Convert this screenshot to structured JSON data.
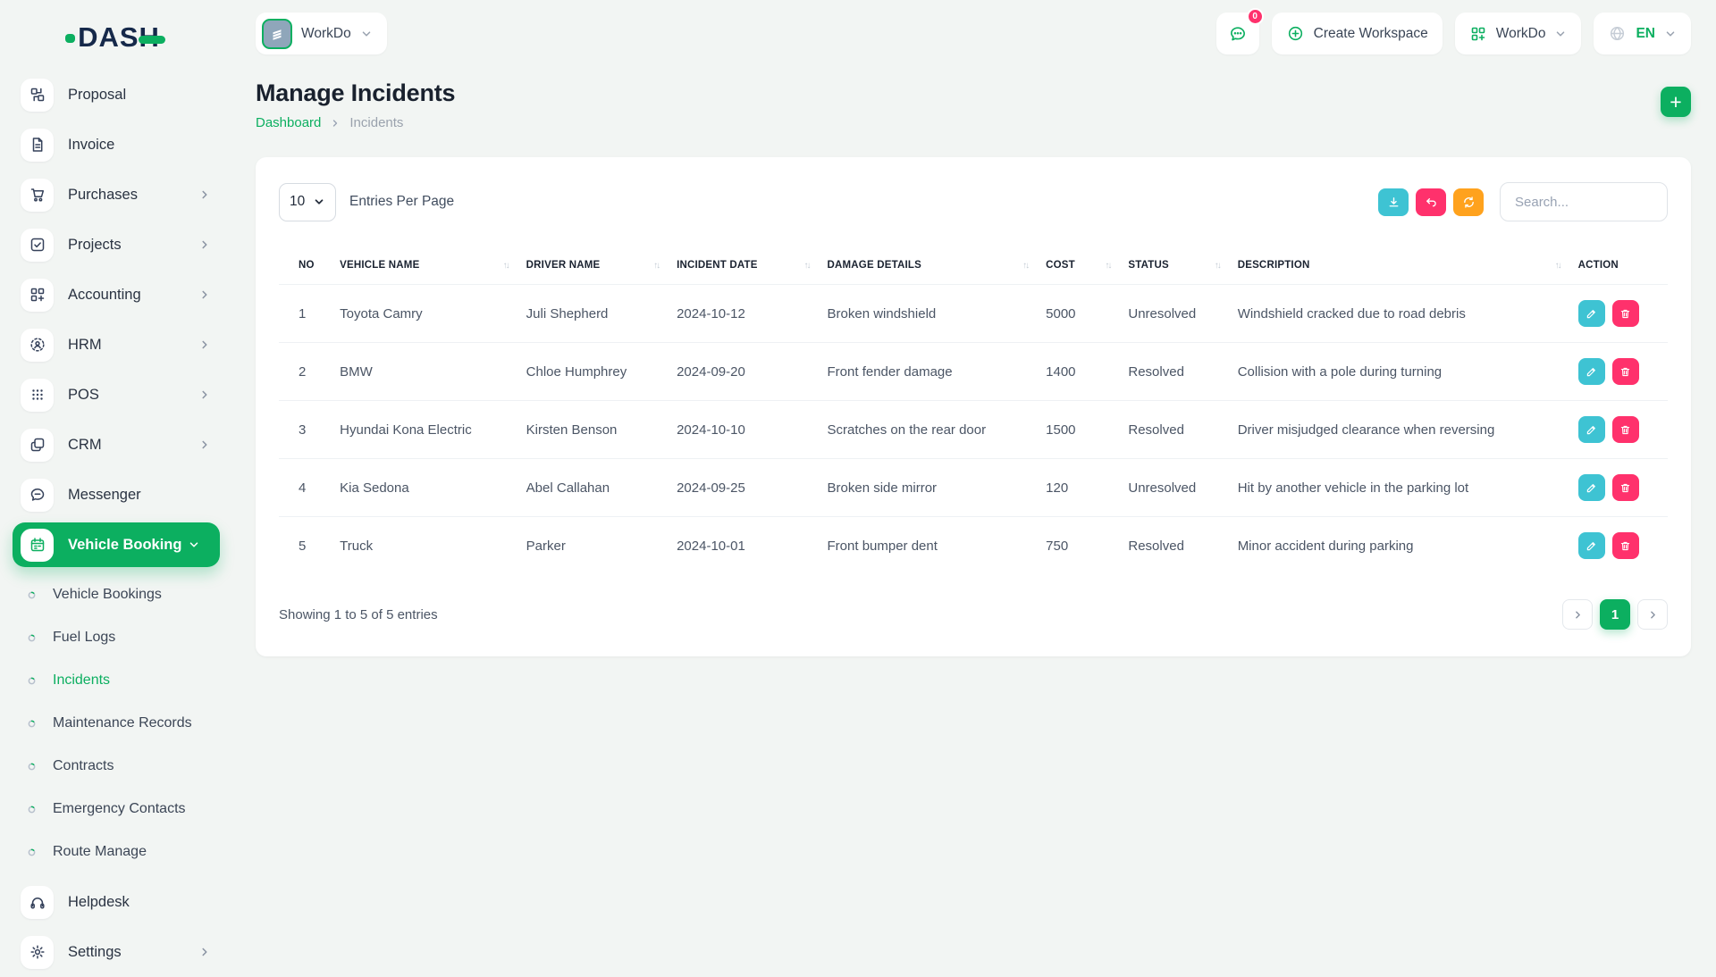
{
  "app": {
    "logo": "DASH"
  },
  "topbar": {
    "workspace_switcher": {
      "label": "WorkDo"
    },
    "messages": {
      "badge": "0"
    },
    "create_workspace": {
      "label": "Create Workspace"
    },
    "user_menu": {
      "label": "WorkDo"
    },
    "language": {
      "label": "EN"
    }
  },
  "sidebar": {
    "items": [
      {
        "label": "Proposal",
        "icon": "proposal-icon",
        "expandable": false
      },
      {
        "label": "Invoice",
        "icon": "invoice-icon",
        "expandable": false
      },
      {
        "label": "Purchases",
        "icon": "purchases-icon",
        "expandable": true
      },
      {
        "label": "Projects",
        "icon": "projects-icon",
        "expandable": true
      },
      {
        "label": "Accounting",
        "icon": "accounting-icon",
        "expandable": true
      },
      {
        "label": "HRM",
        "icon": "hrm-icon",
        "expandable": true
      },
      {
        "label": "POS",
        "icon": "pos-icon",
        "expandable": true
      },
      {
        "label": "CRM",
        "icon": "crm-icon",
        "expandable": true
      },
      {
        "label": "Messenger",
        "icon": "messenger-icon",
        "expandable": false
      },
      {
        "label": "Vehicle Booking",
        "icon": "vehicle-booking-icon",
        "expandable": true,
        "expanded": true,
        "active": true,
        "children": [
          {
            "label": "Vehicle Bookings",
            "active": false
          },
          {
            "label": "Fuel Logs",
            "active": false
          },
          {
            "label": "Incidents",
            "active": true
          },
          {
            "label": "Maintenance Records",
            "active": false
          },
          {
            "label": "Contracts",
            "active": false
          },
          {
            "label": "Emergency Contacts",
            "active": false
          },
          {
            "label": "Route Manage",
            "active": false
          }
        ]
      },
      {
        "label": "Helpdesk",
        "icon": "helpdesk-icon",
        "expandable": false
      },
      {
        "label": "Settings",
        "icon": "settings-icon",
        "expandable": true
      }
    ]
  },
  "page": {
    "title": "Manage Incidents",
    "breadcrumb": {
      "home": "Dashboard",
      "current": "Incidents"
    },
    "add_button": "+"
  },
  "table_card": {
    "entries_per_page": {
      "value": "10",
      "label": "Entries Per Page"
    },
    "toolbar": {
      "icons": [
        "download-icon",
        "undo-icon",
        "refresh-icon"
      ]
    },
    "search": {
      "placeholder": "Search..."
    },
    "columns": [
      {
        "label": "NO",
        "sortable": false
      },
      {
        "label": "VEHICLE NAME",
        "sortable": true
      },
      {
        "label": "DRIVER NAME",
        "sortable": true
      },
      {
        "label": "INCIDENT DATE",
        "sortable": true
      },
      {
        "label": "DAMAGE DETAILS",
        "sortable": true
      },
      {
        "label": "COST",
        "sortable": true
      },
      {
        "label": "STATUS",
        "sortable": true
      },
      {
        "label": "DESCRIPTION",
        "sortable": true
      },
      {
        "label": "ACTION",
        "sortable": false
      }
    ],
    "rows": [
      {
        "no": "1",
        "vehicle_name": "Toyota Camry",
        "driver_name": "Juli Shepherd",
        "incident_date": "2024-10-12",
        "damage_details": "Broken windshield",
        "cost": "5000",
        "status": "Unresolved",
        "description": "Windshield cracked due to road debris"
      },
      {
        "no": "2",
        "vehicle_name": "BMW",
        "driver_name": "Chloe Humphrey",
        "incident_date": "2024-09-20",
        "damage_details": "Front fender damage",
        "cost": "1400",
        "status": "Resolved",
        "description": "Collision with a pole during turning"
      },
      {
        "no": "3",
        "vehicle_name": "Hyundai Kona Electric",
        "driver_name": "Kirsten Benson",
        "incident_date": "2024-10-10",
        "damage_details": "Scratches on the rear door",
        "cost": "1500",
        "status": "Resolved",
        "description": "Driver misjudged clearance when reversing"
      },
      {
        "no": "4",
        "vehicle_name": "Kia Sedona",
        "driver_name": "Abel Callahan",
        "incident_date": "2024-09-25",
        "damage_details": "Broken side mirror",
        "cost": "120",
        "status": "Unresolved",
        "description": "Hit by another vehicle in the parking lot"
      },
      {
        "no": "5",
        "vehicle_name": "Truck",
        "driver_name": "Parker",
        "incident_date": "2024-10-01",
        "damage_details": "Front bumper dent",
        "cost": "750",
        "status": "Resolved",
        "description": "Minor accident during parking"
      }
    ],
    "footer": {
      "summary": "Showing 1 to 5 of 5 entries",
      "pagination": {
        "current": "1"
      }
    }
  },
  "colors": {
    "green": "#0CAF60",
    "teal": "#3EC3D3",
    "pink": "#FF316C",
    "orange": "#FFA21D"
  }
}
